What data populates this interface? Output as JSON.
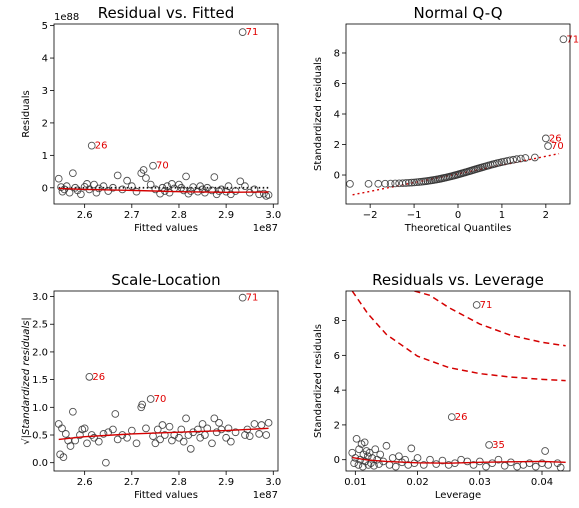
{
  "figure": {
    "background": "#ffffff"
  },
  "style": {
    "point_stroke": "#333333",
    "fit_color": "#d40000",
    "label_color": "#e00000",
    "ref_color": "#111111"
  },
  "chart_data": [
    {
      "id": "p1",
      "type": "scatter",
      "title": "Residual vs. Fitted",
      "xlabel": "Fitted values",
      "ylabel": "Residuals",
      "x_exponent": "1e87",
      "y_exponent": "1e88",
      "xlim": [
        2.535,
        3.01
      ],
      "ylim": [
        -0.5,
        5.05
      ],
      "xticks": [
        {
          "v": 2.6,
          "t": "2.6"
        },
        {
          "v": 2.7,
          "t": "2.7"
        },
        {
          "v": 2.8,
          "t": "2.8"
        },
        {
          "v": 2.9,
          "t": "2.9"
        },
        {
          "v": 3.0,
          "t": "3.0"
        }
      ],
      "yticks": [
        {
          "v": 0,
          "t": "0"
        },
        {
          "v": 1,
          "t": "1"
        },
        {
          "v": 2,
          "t": "2"
        },
        {
          "v": 3,
          "t": "3"
        },
        {
          "v": 4,
          "t": "4"
        },
        {
          "v": 5,
          "t": "5"
        }
      ],
      "points": [
        [
          2.545,
          0.28
        ],
        [
          2.55,
          0.02
        ],
        [
          2.553,
          -0.12
        ],
        [
          2.557,
          -0.05
        ],
        [
          2.562,
          0.05
        ],
        [
          2.568,
          -0.15
        ],
        [
          2.575,
          0.45
        ],
        [
          2.58,
          0.0
        ],
        [
          2.585,
          -0.08
        ],
        [
          2.592,
          -0.2
        ],
        [
          2.6,
          0.03
        ],
        [
          2.605,
          0.12
        ],
        [
          2.61,
          -0.05
        ],
        [
          2.615,
          1.3
        ],
        [
          2.62,
          0.1
        ],
        [
          2.625,
          -0.15
        ],
        [
          2.63,
          -0.02
        ],
        [
          2.64,
          0.05
        ],
        [
          2.65,
          -0.1
        ],
        [
          2.66,
          0.0
        ],
        [
          2.67,
          0.38
        ],
        [
          2.68,
          -0.05
        ],
        [
          2.69,
          0.22
        ],
        [
          2.7,
          0.05
        ],
        [
          2.71,
          -0.12
        ],
        [
          2.72,
          0.45
        ],
        [
          2.725,
          0.55
        ],
        [
          2.73,
          0.3
        ],
        [
          2.74,
          0.1
        ],
        [
          2.745,
          0.68
        ],
        [
          2.75,
          -0.05
        ],
        [
          2.76,
          -0.18
        ],
        [
          2.765,
          0.0
        ],
        [
          2.77,
          -0.1
        ],
        [
          2.775,
          0.05
        ],
        [
          2.78,
          -0.15
        ],
        [
          2.785,
          0.12
        ],
        [
          2.79,
          -0.02
        ],
        [
          2.8,
          0.1
        ],
        [
          2.805,
          0.0
        ],
        [
          2.81,
          -0.08
        ],
        [
          2.815,
          0.35
        ],
        [
          2.82,
          -0.18
        ],
        [
          2.825,
          -0.1
        ],
        [
          2.83,
          0.02
        ],
        [
          2.84,
          -0.12
        ],
        [
          2.845,
          0.05
        ],
        [
          2.85,
          -0.05
        ],
        [
          2.855,
          -0.15
        ],
        [
          2.86,
          0.0
        ],
        [
          2.87,
          -0.08
        ],
        [
          2.875,
          0.33
        ],
        [
          2.88,
          -0.2
        ],
        [
          2.885,
          -0.1
        ],
        [
          2.89,
          -0.05
        ],
        [
          2.9,
          -0.12
        ],
        [
          2.905,
          0.05
        ],
        [
          2.91,
          -0.2
        ],
        [
          2.92,
          -0.1
        ],
        [
          2.93,
          0.2
        ],
        [
          2.935,
          4.8
        ],
        [
          2.94,
          0.05
        ],
        [
          2.95,
          -0.15
        ],
        [
          2.96,
          -0.05
        ],
        [
          2.97,
          -0.2
        ],
        [
          2.98,
          -0.18
        ],
        [
          2.985,
          -0.25
        ],
        [
          2.99,
          -0.22
        ]
      ],
      "fit": [
        [
          2.545,
          -0.02
        ],
        [
          2.6,
          -0.05
        ],
        [
          2.7,
          -0.08
        ],
        [
          2.8,
          -0.12
        ],
        [
          2.9,
          -0.14
        ],
        [
          2.99,
          -0.13
        ]
      ],
      "ref": {
        "kind": "dotted",
        "points": [
          [
            2.545,
            0.0
          ],
          [
            2.99,
            0.0
          ]
        ]
      },
      "labels": [
        {
          "t": "71",
          "x": 2.935,
          "y": 4.8
        },
        {
          "t": "26",
          "x": 2.615,
          "y": 1.3
        },
        {
          "t": "70",
          "x": 2.745,
          "y": 0.68
        }
      ]
    },
    {
      "id": "p2",
      "type": "scatter",
      "title": "Normal Q-Q",
      "xlabel": "Theoretical Quantiles",
      "ylabel": "Standardized residuals",
      "xlim": [
        -2.55,
        2.55
      ],
      "ylim": [
        -1.9,
        9.9
      ],
      "xticks": [
        {
          "v": -2,
          "t": "−2"
        },
        {
          "v": -1,
          "t": "−1"
        },
        {
          "v": 0,
          "t": "0"
        },
        {
          "v": 1,
          "t": "1"
        },
        {
          "v": 2,
          "t": "2"
        }
      ],
      "yticks": [
        {
          "v": 0,
          "t": "0"
        },
        {
          "v": 2,
          "t": "2"
        },
        {
          "v": 4,
          "t": "4"
        },
        {
          "v": 6,
          "t": "6"
        },
        {
          "v": 8,
          "t": "8"
        }
      ],
      "qq": {
        "n": 68,
        "start": -0.58,
        "end": 1.12,
        "tail": [
          [
            1.75,
            1.15
          ],
          [
            2.05,
            1.9
          ],
          [
            2.0,
            2.4
          ],
          [
            2.4,
            8.9
          ]
        ]
      },
      "ref": {
        "kind": "dotted-red",
        "points": [
          [
            -2.4,
            -1.3
          ],
          [
            2.3,
            1.4
          ]
        ]
      },
      "labels": [
        {
          "t": "71",
          "x": 2.4,
          "y": 8.9
        },
        {
          "t": "26",
          "x": 2.0,
          "y": 2.4
        },
        {
          "t": "70",
          "x": 2.05,
          "y": 1.9
        }
      ]
    },
    {
      "id": "p3",
      "type": "scatter",
      "title": "Scale-Location",
      "xlabel": "Fitted values",
      "ylabel": "√|Standardized residuals|",
      "x_exponent": "1e87",
      "xlim": [
        2.535,
        3.01
      ],
      "ylim": [
        -0.15,
        3.1
      ],
      "xticks": [
        {
          "v": 2.6,
          "t": "2.6"
        },
        {
          "v": 2.7,
          "t": "2.7"
        },
        {
          "v": 2.8,
          "t": "2.8"
        },
        {
          "v": 2.9,
          "t": "2.9"
        },
        {
          "v": 3.0,
          "t": "3.0"
        }
      ],
      "yticks": [
        {
          "v": 0,
          "t": "0.0"
        },
        {
          "v": 0.5,
          "t": "0.5"
        },
        {
          "v": 1.0,
          "t": "1.0"
        },
        {
          "v": 1.5,
          "t": "1.5"
        },
        {
          "v": 2.0,
          "t": "2.0"
        },
        {
          "v": 2.5,
          "t": "2.5"
        },
        {
          "v": 3.0,
          "t": "3.0"
        }
      ],
      "points": [
        [
          2.545,
          0.7
        ],
        [
          2.548,
          0.15
        ],
        [
          2.552,
          0.62
        ],
        [
          2.555,
          0.1
        ],
        [
          2.56,
          0.52
        ],
        [
          2.565,
          0.4
        ],
        [
          2.57,
          0.3
        ],
        [
          2.575,
          0.92
        ],
        [
          2.58,
          0.4
        ],
        [
          2.59,
          0.5
        ],
        [
          2.595,
          0.6
        ],
        [
          2.6,
          0.62
        ],
        [
          2.605,
          0.35
        ],
        [
          2.61,
          1.55
        ],
        [
          2.615,
          0.5
        ],
        [
          2.62,
          0.45
        ],
        [
          2.63,
          0.38
        ],
        [
          2.64,
          0.52
        ],
        [
          2.645,
          0.0
        ],
        [
          2.65,
          0.55
        ],
        [
          2.66,
          0.6
        ],
        [
          2.665,
          0.88
        ],
        [
          2.67,
          0.42
        ],
        [
          2.68,
          0.5
        ],
        [
          2.69,
          0.45
        ],
        [
          2.7,
          0.58
        ],
        [
          2.71,
          0.35
        ],
        [
          2.72,
          1.0
        ],
        [
          2.722,
          1.05
        ],
        [
          2.73,
          0.62
        ],
        [
          2.74,
          1.15
        ],
        [
          2.745,
          0.48
        ],
        [
          2.75,
          0.35
        ],
        [
          2.755,
          0.6
        ],
        [
          2.76,
          0.42
        ],
        [
          2.765,
          0.68
        ],
        [
          2.77,
          0.5
        ],
        [
          2.78,
          0.65
        ],
        [
          2.785,
          0.4
        ],
        [
          2.79,
          0.5
        ],
        [
          2.8,
          0.45
        ],
        [
          2.805,
          0.6
        ],
        [
          2.81,
          0.38
        ],
        [
          2.815,
          0.8
        ],
        [
          2.82,
          0.5
        ],
        [
          2.825,
          0.25
        ],
        [
          2.83,
          0.55
        ],
        [
          2.84,
          0.6
        ],
        [
          2.845,
          0.45
        ],
        [
          2.85,
          0.7
        ],
        [
          2.855,
          0.5
        ],
        [
          2.86,
          0.62
        ],
        [
          2.87,
          0.35
        ],
        [
          2.875,
          0.8
        ],
        [
          2.88,
          0.55
        ],
        [
          2.885,
          0.72
        ],
        [
          2.89,
          0.6
        ],
        [
          2.9,
          0.45
        ],
        [
          2.905,
          0.62
        ],
        [
          2.91,
          0.38
        ],
        [
          2.92,
          0.55
        ],
        [
          2.935,
          2.98
        ],
        [
          2.94,
          0.5
        ],
        [
          2.945,
          0.6
        ],
        [
          2.95,
          0.48
        ],
        [
          2.96,
          0.7
        ],
        [
          2.97,
          0.52
        ],
        [
          2.975,
          0.68
        ],
        [
          2.985,
          0.5
        ],
        [
          2.99,
          0.72
        ]
      ],
      "fit": [
        [
          2.545,
          0.42
        ],
        [
          2.6,
          0.47
        ],
        [
          2.7,
          0.52
        ],
        [
          2.8,
          0.55
        ],
        [
          2.9,
          0.58
        ],
        [
          2.99,
          0.62
        ]
      ],
      "labels": [
        {
          "t": "71",
          "x": 2.935,
          "y": 2.98
        },
        {
          "t": "26",
          "x": 2.61,
          "y": 1.55
        },
        {
          "t": "70",
          "x": 2.74,
          "y": 1.15
        }
      ]
    },
    {
      "id": "p4",
      "type": "scatter",
      "title": "Residuals vs. Leverage",
      "xlabel": "Leverage",
      "ylabel": "Standardized residuals",
      "xlim": [
        0.0085,
        0.0445
      ],
      "ylim": [
        -0.65,
        9.7
      ],
      "xticks": [
        {
          "v": 0.01,
          "t": "0.01"
        },
        {
          "v": 0.02,
          "t": "0.02"
        },
        {
          "v": 0.03,
          "t": "0.03"
        },
        {
          "v": 0.04,
          "t": "0.04"
        }
      ],
      "yticks": [
        {
          "v": 0,
          "t": "0"
        },
        {
          "v": 2,
          "t": "2"
        },
        {
          "v": 4,
          "t": "4"
        },
        {
          "v": 6,
          "t": "6"
        },
        {
          "v": 8,
          "t": "8"
        }
      ],
      "points": [
        [
          0.0095,
          0.4
        ],
        [
          0.0098,
          -0.2
        ],
        [
          0.01,
          0.1
        ],
        [
          0.0102,
          1.2
        ],
        [
          0.0105,
          -0.3
        ],
        [
          0.0106,
          0.6
        ],
        [
          0.0108,
          0.0
        ],
        [
          0.011,
          0.9
        ],
        [
          0.0112,
          -0.4
        ],
        [
          0.0113,
          0.3
        ],
        [
          0.0115,
          1.0
        ],
        [
          0.0116,
          -0.1
        ],
        [
          0.0118,
          0.5
        ],
        [
          0.012,
          0.2
        ],
        [
          0.0121,
          -0.3
        ],
        [
          0.0123,
          0.4
        ],
        [
          0.0125,
          -0.2
        ],
        [
          0.0127,
          0.1
        ],
        [
          0.013,
          -0.35
        ],
        [
          0.0132,
          0.6
        ],
        [
          0.0135,
          0.0
        ],
        [
          0.0138,
          -0.25
        ],
        [
          0.014,
          0.3
        ],
        [
          0.0145,
          -0.1
        ],
        [
          0.015,
          0.8
        ],
        [
          0.0155,
          -0.3
        ],
        [
          0.016,
          0.1
        ],
        [
          0.0165,
          -0.4
        ],
        [
          0.017,
          0.2
        ],
        [
          0.0175,
          -0.15
        ],
        [
          0.018,
          0.0
        ],
        [
          0.0185,
          -0.3
        ],
        [
          0.019,
          0.65
        ],
        [
          0.0195,
          -0.2
        ],
        [
          0.02,
          0.1
        ],
        [
          0.021,
          -0.3
        ],
        [
          0.022,
          0.0
        ],
        [
          0.023,
          -0.25
        ],
        [
          0.024,
          -0.05
        ],
        [
          0.025,
          -0.3
        ],
        [
          0.0255,
          2.45
        ],
        [
          0.026,
          -0.2
        ],
        [
          0.027,
          0.0
        ],
        [
          0.028,
          -0.1
        ],
        [
          0.029,
          -0.3
        ],
        [
          0.0295,
          8.9
        ],
        [
          0.03,
          -0.1
        ],
        [
          0.031,
          -0.4
        ],
        [
          0.0315,
          0.85
        ],
        [
          0.032,
          -0.2
        ],
        [
          0.033,
          0.0
        ],
        [
          0.034,
          -0.35
        ],
        [
          0.035,
          -0.15
        ],
        [
          0.036,
          -0.4
        ],
        [
          0.037,
          -0.3
        ],
        [
          0.038,
          -0.2
        ],
        [
          0.039,
          -0.4
        ],
        [
          0.04,
          -0.2
        ],
        [
          0.0405,
          0.5
        ],
        [
          0.041,
          -0.3
        ],
        [
          0.0425,
          -0.2
        ],
        [
          0.043,
          -0.45
        ]
      ],
      "fit": [
        [
          0.0095,
          0.12
        ],
        [
          0.012,
          -0.02
        ],
        [
          0.015,
          -0.1
        ],
        [
          0.02,
          -0.18
        ],
        [
          0.025,
          -0.2
        ],
        [
          0.03,
          -0.15
        ],
        [
          0.035,
          -0.12
        ],
        [
          0.04,
          -0.1
        ],
        [
          0.0438,
          -0.15
        ]
      ],
      "cook": [
        [
          [
            0.0095,
            9.7
          ],
          [
            0.012,
            8.4
          ],
          [
            0.015,
            7.2
          ],
          [
            0.02,
            5.95
          ],
          [
            0.025,
            5.3
          ],
          [
            0.03,
            4.95
          ],
          [
            0.035,
            4.75
          ],
          [
            0.04,
            4.62
          ],
          [
            0.0438,
            4.55
          ]
        ],
        [
          [
            0.0195,
            9.7
          ],
          [
            0.022,
            9.45
          ],
          [
            0.025,
            8.75
          ],
          [
            0.03,
            7.8
          ],
          [
            0.035,
            7.15
          ],
          [
            0.04,
            6.75
          ],
          [
            0.0438,
            6.55
          ]
        ]
      ],
      "labels": [
        {
          "t": "71",
          "x": 0.0295,
          "y": 8.9
        },
        {
          "t": "26",
          "x": 0.0255,
          "y": 2.45
        },
        {
          "t": "35",
          "x": 0.0315,
          "y": 0.85
        }
      ]
    }
  ]
}
